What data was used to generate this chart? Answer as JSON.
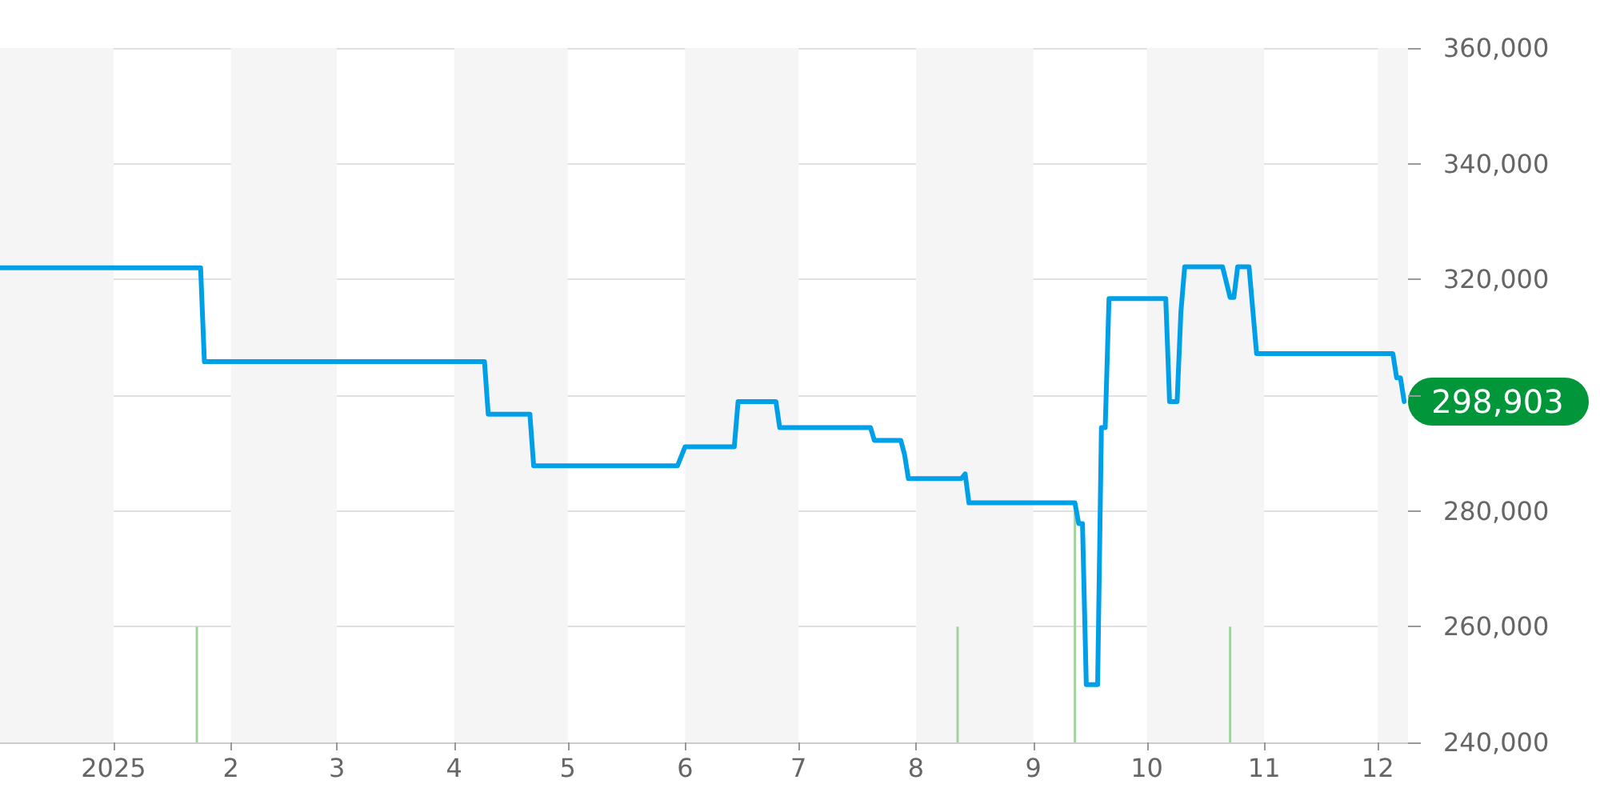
{
  "chart_data": {
    "type": "line",
    "series": [
      {
        "color": "#00a0e9",
        "x": [
          "2024-12-02",
          "2025-01-24",
          "2025-01-25",
          "2025-04-09",
          "2025-04-10",
          "2025-04-21",
          "2025-04-22",
          "2025-05-30",
          "2025-06-01",
          "2025-06-14",
          "2025-06-15",
          "2025-06-25",
          "2025-06-26",
          "2025-07-20",
          "2025-07-21",
          "2025-07-28",
          "2025-07-29",
          "2025-07-30",
          "2025-08-13",
          "2025-08-14",
          "2025-08-15",
          "2025-09-12",
          "2025-09-13",
          "2025-09-14",
          "2025-09-15",
          "2025-09-18",
          "2025-09-19",
          "2025-09-20",
          "2025-09-21",
          "2025-10-06",
          "2025-10-07",
          "2025-10-09",
          "2025-10-10",
          "2025-10-11",
          "2025-10-21",
          "2025-10-23",
          "2025-10-24",
          "2025-10-25",
          "2025-10-28",
          "2025-10-30",
          "2025-12-05",
          "2025-12-06",
          "2025-12-07",
          "2025-12-08"
        ],
        "values": [
          322000,
          322000,
          305800,
          305800,
          296700,
          296700,
          287800,
          287800,
          291100,
          291100,
          298900,
          298900,
          294400,
          294400,
          292200,
          292200,
          289700,
          285600,
          285600,
          286400,
          281400,
          281400,
          277800,
          277800,
          250000,
          250000,
          294400,
          294400,
          316700,
          316700,
          298900,
          298900,
          314400,
          322200,
          322200,
          316900,
          316900,
          322200,
          322200,
          307200,
          307200,
          303000,
          303000,
          298903
        ]
      },
      {
        "type": "bar",
        "color": "#9fd49f",
        "x": [
          "2025-01-23",
          "2025-08-12",
          "2025-09-12",
          "2025-09-18",
          "2025-10-23"
        ],
        "values": [
          260000,
          260000,
          280000,
          null,
          260000
        ]
      }
    ],
    "xlim": [
      "2024-12-02",
      "2025-12-09"
    ],
    "xticks": [
      {
        "value": "2025-01-01",
        "label": "2025"
      },
      {
        "value": "2025-02-01",
        "label": "2"
      },
      {
        "value": "2025-03-01",
        "label": "3"
      },
      {
        "value": "2025-04-01",
        "label": "4"
      },
      {
        "value": "2025-05-01",
        "label": "5"
      },
      {
        "value": "2025-06-01",
        "label": "6"
      },
      {
        "value": "2025-07-01",
        "label": "7"
      },
      {
        "value": "2025-08-01",
        "label": "8"
      },
      {
        "value": "2025-09-01",
        "label": "9"
      },
      {
        "value": "2025-10-01",
        "label": "10"
      },
      {
        "value": "2025-11-01",
        "label": "11"
      },
      {
        "value": "2025-12-01",
        "label": "12"
      }
    ],
    "ylim": [
      240000,
      360000
    ],
    "yticks": [
      {
        "value": 240000,
        "label": "240,000"
      },
      {
        "value": 260000,
        "label": "260,000"
      },
      {
        "value": 280000,
        "label": "280,000"
      },
      {
        "value": 300000,
        "label": null
      },
      {
        "value": 320000,
        "label": "320,000"
      },
      {
        "value": 340000,
        "label": "340,000"
      },
      {
        "value": 360000,
        "label": "360,000"
      }
    ],
    "bands": [
      {
        "axis": "x",
        "from": "2024-12-02",
        "to": "2025-01-01",
        "color": "#f5f5f5"
      },
      {
        "axis": "x",
        "from": "2025-02-01",
        "to": "2025-03-01",
        "color": "#f5f5f5"
      },
      {
        "axis": "x",
        "from": "2025-04-01",
        "to": "2025-05-01",
        "color": "#f5f5f5"
      },
      {
        "axis": "x",
        "from": "2025-06-01",
        "to": "2025-07-01",
        "color": "#f5f5f5"
      },
      {
        "axis": "x",
        "from": "2025-08-01",
        "to": "2025-09-01",
        "color": "#f5f5f5"
      },
      {
        "axis": "x",
        "from": "2025-10-01",
        "to": "2025-11-01",
        "color": "#f5f5f5"
      },
      {
        "axis": "x",
        "from": "2025-12-01",
        "to": "2025-12-09",
        "color": "#f5f5f5"
      }
    ],
    "annotations": [
      {
        "text": "298,903",
        "x": "2025-12-08",
        "y": 298903
      }
    ],
    "grid": "y",
    "marker": "none",
    "line_style": "solid"
  }
}
